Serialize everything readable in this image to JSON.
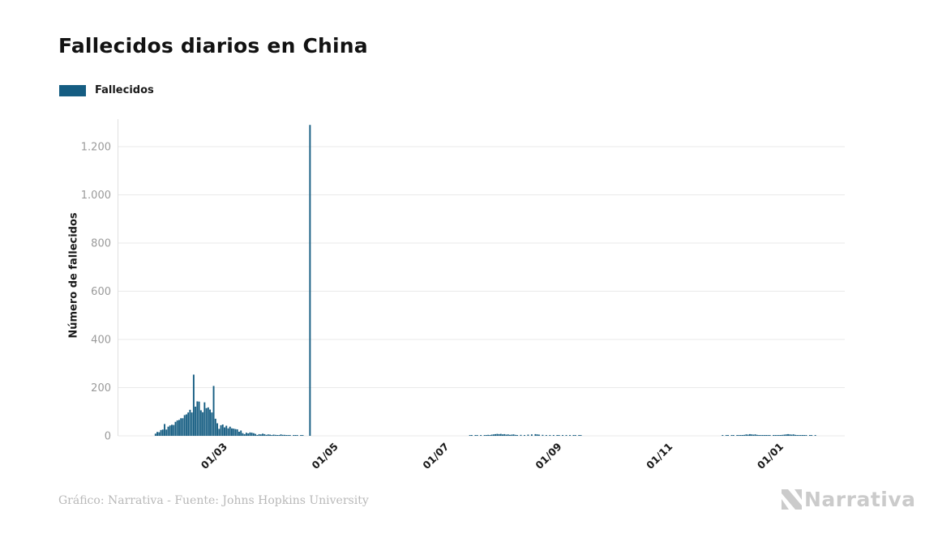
{
  "header": {
    "title": "Fallecidos diarios en China"
  },
  "legend": {
    "label": "Fallecidos",
    "position": "top-left"
  },
  "footer": {
    "credit": "Gráfico: Narrativa - Fuente: Johns Hopkins University",
    "logo_text": "Narrativa",
    "logo_icon": "narrativa-n-mark"
  },
  "colors": {
    "bar": "#155d82",
    "grid": "#e9e9e9",
    "axis_line": "#e0e0e0",
    "y_tick_label": "#9a9a9a",
    "x_tick_label": "#1a1a1a",
    "title": "#121212",
    "footer_text": "#b8b8b8",
    "logo": "#cbcbcb",
    "background": "#ffffff"
  },
  "chart_data": {
    "type": "bar",
    "title": "Fallecidos diarios en China",
    "xlabel": "",
    "ylabel": "Número de fallecidos",
    "ylim": [
      0,
      1400
    ],
    "x_range": [
      "2020-01-20",
      "2021-02-04"
    ],
    "grid": "horizontal",
    "legend_position": "top-left",
    "y_ticks": [
      {
        "label": "0",
        "value": 0
      },
      {
        "label": "200",
        "value": 200
      },
      {
        "label": "400",
        "value": 400
      },
      {
        "label": "600",
        "value": 600
      },
      {
        "label": "800",
        "value": 800
      },
      {
        "label": "1.000",
        "value": 1000
      },
      {
        "label": "1.200",
        "value": 1200
      }
    ],
    "x_ticks": [
      {
        "label": "01/03",
        "date": "2020-03-01"
      },
      {
        "label": "01/05",
        "date": "2020-05-01"
      },
      {
        "label": "01/07",
        "date": "2020-07-01"
      },
      {
        "label": "01/09",
        "date": "2020-09-01"
      },
      {
        "label": "01/11",
        "date": "2020-11-01"
      },
      {
        "label": "01/01",
        "date": "2021-01-01"
      }
    ],
    "series": [
      {
        "name": "Fallecidos",
        "color": "#155d82",
        "unlisted_days_value": 0,
        "segments": [
          {
            "start_date": "2020-01-23",
            "values": [
              9,
              16,
              15,
              24,
              26,
              49,
              26,
              38,
              43,
              46,
              45,
              58,
              64,
              66,
              73,
              73,
              86,
              89,
              97,
              108,
              97,
              254,
              121,
              143,
              142,
              106,
              98,
              139,
              115,
              118,
              109,
              97,
              207,
              71,
              52,
              29,
              44,
              47,
              35,
              42,
              31,
              38,
              31,
              30,
              28,
              27,
              17,
              22,
              11,
              7,
              13,
              10,
              14,
              13,
              11,
              8,
              3,
              7,
              6,
              9,
              7,
              4,
              6,
              5,
              3,
              5,
              4,
              2,
              1,
              6,
              4,
              4,
              3,
              2,
              1,
              0,
              2,
              1,
              1,
              0,
              1,
              1,
              0,
              0,
              0,
              1290
            ]
          },
          {
            "start_date": "2020-07-14",
            "values": [
              2,
              1,
              0,
              1,
              2,
              0,
              1,
              0,
              3,
              2,
              4,
              3,
              5,
              6,
              7,
              8,
              7,
              8,
              6,
              7,
              5,
              6,
              4,
              5,
              6,
              4,
              3,
              0,
              4,
              0,
              3,
              0,
              5,
              0,
              6,
              0,
              7,
              6,
              5,
              0,
              4,
              0,
              3,
              0,
              2,
              0,
              3,
              0,
              2,
              1,
              0,
              2,
              0,
              1,
              0,
              1,
              0,
              1,
              1,
              0,
              1,
              1
            ]
          },
          {
            "start_date": "2020-11-30",
            "values": [
              1,
              0,
              2,
              1,
              0,
              3,
              2,
              0,
              1,
              2,
              1,
              3,
              4,
              6,
              5,
              7,
              6,
              5,
              6,
              4,
              3,
              2,
              3,
              2,
              1,
              2,
              1,
              0,
              1,
              2,
              1,
              3,
              2,
              4,
              5,
              6,
              7,
              6,
              5,
              6,
              4,
              3,
              2,
              1,
              2,
              1,
              1,
              0,
              1,
              1,
              0,
              1
            ]
          }
        ]
      }
    ]
  }
}
